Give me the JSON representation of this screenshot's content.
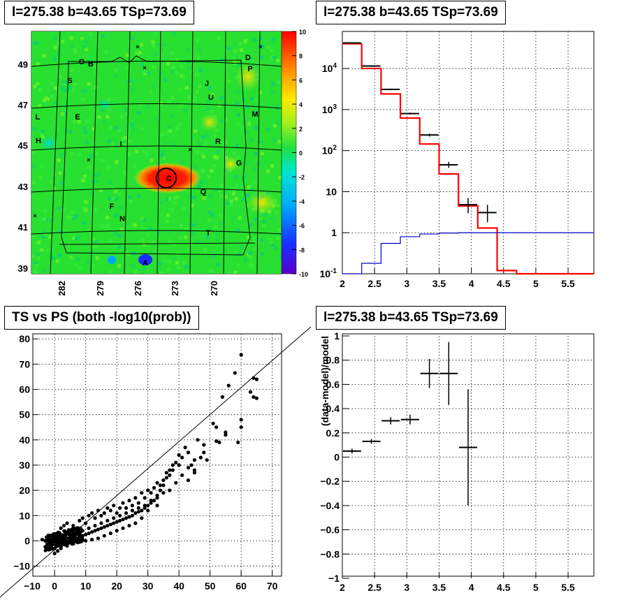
{
  "panels": {
    "skymap": {
      "title": "l=275.38 b=43.65 TSp=73.69",
      "chart_data": {
        "type": "heatmap",
        "x_ticks": [
          "282",
          "279",
          "276",
          "273",
          "270"
        ],
        "y_ticks": [
          "39",
          "41",
          "43",
          "45",
          "47",
          "49"
        ],
        "color_scale": {
          "min": -10,
          "max": 10,
          "ticks": [
            "10",
            "8",
            "6",
            "4",
            "2",
            "0",
            "-2",
            "-4",
            "-6",
            "-8",
            "-10"
          ]
        },
        "source_labels": [
          "O",
          "B",
          "D",
          "P",
          "S",
          "J",
          "U",
          "L",
          "E",
          "M",
          "H",
          "R",
          "I",
          "G",
          "C",
          "Q",
          "F",
          "N",
          "T",
          "A"
        ],
        "hotspot": {
          "label": "C",
          "l": 275.38,
          "b": 43.65
        }
      }
    },
    "spectrum": {
      "title": "l=275.38 b=43.65 TSp=73.69",
      "chart_data": {
        "type": "line",
        "x_scale": "linear",
        "y_scale": "log",
        "xlim": [
          2,
          5.9
        ],
        "ylim": [
          0.1,
          80000
        ],
        "x_ticks": [
          "2",
          "2.5",
          "3",
          "3.5",
          "4",
          "4.5",
          "5",
          "5.5"
        ],
        "y_ticks": [
          "10^-1",
          "1",
          "10",
          "10^2",
          "10^3",
          "10^4"
        ],
        "bin_edges": [
          2.0,
          2.3,
          2.6,
          2.9,
          3.2,
          3.5,
          3.8,
          4.1,
          4.4,
          4.7,
          5.0,
          5.3,
          5.6,
          5.9
        ],
        "series": [
          {
            "color": "#ff0000",
            "values": [
              40000,
              10000,
              2400,
              620,
              145,
              27,
              4.5,
              1.3,
              0.12,
              0.1,
              0.1,
              0.1,
              0.1
            ]
          },
          {
            "color": "#0000cc",
            "values": [
              0.1,
              0.18,
              0.55,
              0.8,
              0.93,
              0.98,
              1.0,
              1.0,
              1.0,
              1.0,
              1.0,
              1.0,
              1.0
            ]
          }
        ],
        "data_points": [
          {
            "x": 2.15,
            "y": 42000,
            "ylo": 41000,
            "yhi": 43000
          },
          {
            "x": 2.45,
            "y": 11500,
            "ylo": 11000,
            "yhi": 12000
          },
          {
            "x": 2.75,
            "y": 3100,
            "ylo": 2950,
            "yhi": 3250
          },
          {
            "x": 3.05,
            "y": 800,
            "ylo": 760,
            "yhi": 840
          },
          {
            "x": 3.35,
            "y": 240,
            "ylo": 220,
            "yhi": 260
          },
          {
            "x": 3.65,
            "y": 45,
            "ylo": 38,
            "yhi": 53
          },
          {
            "x": 3.95,
            "y": 4.8,
            "ylo": 3.0,
            "yhi": 7.0
          },
          {
            "x": 4.25,
            "y": 3.1,
            "ylo": 1.8,
            "yhi": 4.8
          }
        ]
      }
    },
    "tsps": {
      "title": "TS vs PS (both -log10(prob))",
      "chart_data": {
        "type": "scatter",
        "xlim": [
          -7,
          73
        ],
        "ylim": [
          -14,
          82
        ],
        "x_ticks": [
          "−10",
          "0",
          "10",
          "20",
          "30",
          "40",
          "50",
          "60",
          "70"
        ],
        "y_ticks": [
          "−10",
          "0",
          "10",
          "20",
          "30",
          "40",
          "50",
          "60",
          "70",
          "80"
        ],
        "reference_line": "y = x",
        "points": [
          [
            60,
            73.7
          ],
          [
            58,
            66.5
          ],
          [
            64,
            64.5
          ],
          [
            65,
            64
          ],
          [
            63,
            59
          ],
          [
            64,
            57
          ],
          [
            65,
            56.5
          ],
          [
            56,
            61.5
          ],
          [
            54,
            57
          ],
          [
            51,
            46.5
          ],
          [
            52,
            45
          ],
          [
            55,
            42
          ],
          [
            55,
            43
          ],
          [
            60,
            48
          ],
          [
            60,
            45
          ],
          [
            59,
            39
          ],
          [
            52,
            39.5
          ],
          [
            53,
            39
          ],
          [
            48,
            35
          ],
          [
            47,
            33
          ],
          [
            49,
            32
          ],
          [
            45,
            28
          ],
          [
            43,
            24
          ],
          [
            45,
            27
          ],
          [
            44,
            30
          ],
          [
            43,
            35
          ],
          [
            42,
            37
          ],
          [
            41,
            33
          ],
          [
            40,
            30
          ],
          [
            38,
            28
          ],
          [
            37,
            26
          ],
          [
            36,
            25
          ],
          [
            35,
            22
          ],
          [
            34,
            20
          ],
          [
            33,
            18
          ],
          [
            32,
            16
          ],
          [
            31,
            15
          ],
          [
            30,
            14
          ],
          [
            29,
            13
          ],
          [
            28,
            12
          ],
          [
            27,
            11.5
          ],
          [
            26,
            11
          ],
          [
            25,
            10
          ],
          [
            24,
            9.5
          ],
          [
            23,
            9
          ],
          [
            22,
            8.5
          ],
          [
            21,
            8
          ],
          [
            20,
            7.5
          ],
          [
            19,
            7
          ],
          [
            18,
            6.5
          ],
          [
            17,
            6
          ],
          [
            16,
            5.5
          ],
          [
            15,
            5
          ],
          [
            14,
            4.5
          ],
          [
            13,
            4
          ],
          [
            12,
            3.5
          ],
          [
            11,
            3
          ],
          [
            10,
            2.5
          ],
          [
            9,
            2
          ],
          [
            8,
            1.5
          ],
          [
            7,
            1
          ],
          [
            6,
            0.5
          ],
          [
            5,
            0
          ],
          [
            4,
            -0.5
          ],
          [
            3,
            -1
          ],
          [
            2,
            -1.5
          ],
          [
            1,
            -2
          ],
          [
            0,
            -3
          ],
          [
            -1,
            -2
          ],
          [
            -2,
            -1
          ],
          [
            -3,
            0
          ],
          [
            -4,
            0.5
          ],
          [
            0,
            -5
          ],
          [
            1,
            -4
          ],
          [
            2,
            5
          ],
          [
            3,
            6
          ],
          [
            4,
            7
          ],
          [
            5,
            4
          ],
          [
            6,
            6
          ],
          [
            7,
            5
          ],
          [
            8,
            8
          ],
          [
            9,
            9
          ],
          [
            10,
            7
          ],
          [
            11,
            10
          ],
          [
            12,
            11
          ],
          [
            13,
            9
          ],
          [
            14,
            12
          ],
          [
            15,
            10
          ],
          [
            16,
            11
          ],
          [
            17,
            13
          ],
          [
            18,
            12
          ],
          [
            19,
            14
          ],
          [
            20,
            11
          ],
          [
            21,
            13
          ],
          [
            22,
            15
          ],
          [
            23,
            13
          ],
          [
            24,
            16
          ],
          [
            25,
            14
          ],
          [
            26,
            17
          ],
          [
            27,
            15
          ],
          [
            28,
            19
          ],
          [
            29,
            17
          ],
          [
            30,
            20
          ],
          [
            31,
            19
          ],
          [
            32,
            21
          ],
          [
            33,
            23
          ],
          [
            34,
            22
          ],
          [
            35,
            24
          ],
          [
            36,
            27
          ],
          [
            37,
            28
          ],
          [
            38,
            30
          ],
          [
            39,
            31
          ],
          [
            40,
            34
          ],
          [
            46,
            40
          ],
          [
            48,
            38
          ],
          [
            33,
            14
          ],
          [
            30,
            12
          ],
          [
            28,
            9
          ],
          [
            26,
            7
          ],
          [
            24,
            6
          ],
          [
            22,
            5
          ],
          [
            20,
            4
          ],
          [
            18,
            3
          ],
          [
            16,
            2
          ],
          [
            14,
            1
          ],
          [
            12,
            0.5
          ],
          [
            10,
            0
          ],
          [
            8,
            -0.5
          ],
          [
            6,
            -1
          ],
          [
            4,
            -2
          ],
          [
            2,
            -3
          ],
          [
            5,
            2
          ],
          [
            7,
            3
          ],
          [
            9,
            4
          ],
          [
            11,
            5
          ],
          [
            13,
            6
          ],
          [
            15,
            7
          ],
          [
            17,
            8
          ],
          [
            19,
            9
          ],
          [
            21,
            10
          ],
          [
            23,
            11
          ],
          [
            25,
            12
          ],
          [
            27,
            13
          ],
          [
            29,
            14
          ],
          [
            31,
            16
          ],
          [
            33,
            17
          ],
          [
            35,
            19
          ],
          [
            37,
            20
          ],
          [
            39,
            23
          ],
          [
            41,
            26
          ],
          [
            43,
            29
          ],
          [
            45,
            32
          ]
        ]
      }
    },
    "residual": {
      "title": "l=275.38 b=43.65 TSp=73.69",
      "chart_data": {
        "type": "scatter",
        "xlim": [
          2,
          5.9
        ],
        "ylim": [
          -1,
          1
        ],
        "ylabel": "(data-model)/model",
        "x_ticks": [
          "2",
          "2.5",
          "3",
          "3.5",
          "4",
          "4.5",
          "5",
          "5.5"
        ],
        "y_ticks": [
          "−1",
          "−0.8",
          "−0.6",
          "−0.4",
          "−0.2",
          "0",
          "0.2",
          "0.4",
          "0.6",
          "0.8",
          "1"
        ],
        "points": [
          {
            "x": 2.15,
            "y": 0.05,
            "yerr": 0.02
          },
          {
            "x": 2.45,
            "y": 0.13,
            "yerr": 0.02
          },
          {
            "x": 2.75,
            "y": 0.3,
            "yerr": 0.03
          },
          {
            "x": 3.05,
            "y": 0.31,
            "yerr": 0.04
          },
          {
            "x": 3.35,
            "y": 0.69,
            "yerr": 0.12
          },
          {
            "x": 3.65,
            "y": 0.69,
            "yerr": 0.26
          },
          {
            "x": 3.95,
            "y": 0.08,
            "yerr": 0.48
          }
        ]
      }
    }
  }
}
